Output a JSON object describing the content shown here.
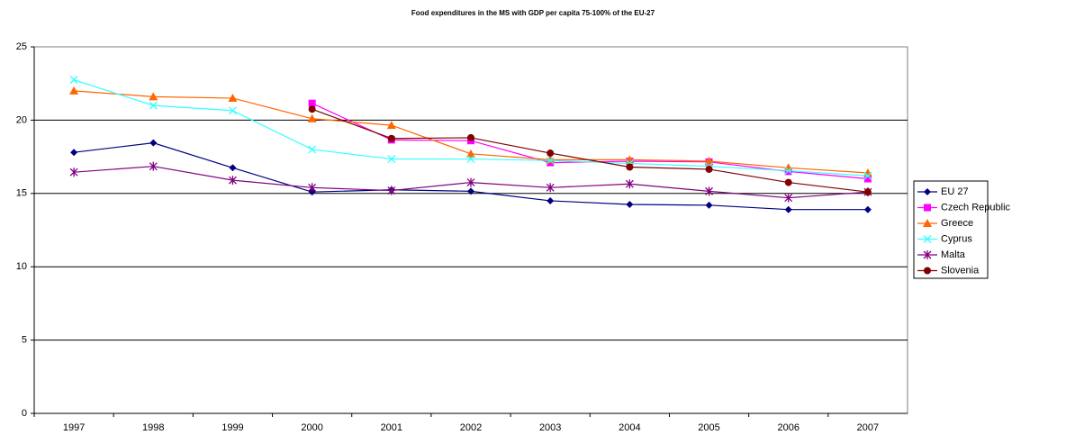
{
  "chart_data": {
    "type": "line",
    "title": "Food expenditures in the MS with GDP per capita 75-100% of the EU-27",
    "categories": [
      "1997",
      "1998",
      "1999",
      "2000",
      "2001",
      "2002",
      "2003",
      "2004",
      "2005",
      "2006",
      "2007"
    ],
    "series": [
      {
        "name": "EU 27",
        "color": "#000080",
        "marker": "diamond",
        "values": [
          17.8,
          18.45,
          16.75,
          15.1,
          15.25,
          15.15,
          14.5,
          14.25,
          14.2,
          13.9,
          13.9
        ]
      },
      {
        "name": "Czech Republic",
        "color": "#ff00ff",
        "marker": "square",
        "values": [
          null,
          null,
          null,
          21.15,
          18.65,
          18.6,
          17.1,
          17.2,
          17.15,
          16.5,
          16.0
        ]
      },
      {
        "name": "Greece",
        "color": "#ff6600",
        "marker": "triangle",
        "values": [
          22.0,
          21.6,
          21.5,
          20.1,
          19.65,
          17.7,
          17.3,
          17.3,
          17.2,
          16.75,
          16.4
        ]
      },
      {
        "name": "Cyprus",
        "color": "#33ffff",
        "marker": "x",
        "values": [
          22.75,
          21.0,
          20.65,
          18.0,
          17.35,
          17.35,
          17.25,
          17.05,
          16.85,
          16.55,
          16.2
        ]
      },
      {
        "name": "Malta",
        "color": "#800080",
        "marker": "star",
        "values": [
          16.45,
          16.85,
          15.9,
          15.4,
          15.2,
          15.75,
          15.4,
          15.65,
          15.15,
          14.7,
          15.1
        ]
      },
      {
        "name": "Slovenia",
        "color": "#800000",
        "marker": "circle",
        "values": [
          null,
          null,
          null,
          20.75,
          18.75,
          18.8,
          17.75,
          16.8,
          16.65,
          15.75,
          15.1
        ]
      }
    ],
    "ylim": [
      0,
      25
    ],
    "yticks": [
      0,
      5,
      10,
      15,
      20,
      25
    ],
    "grid": true,
    "legend": "right"
  }
}
